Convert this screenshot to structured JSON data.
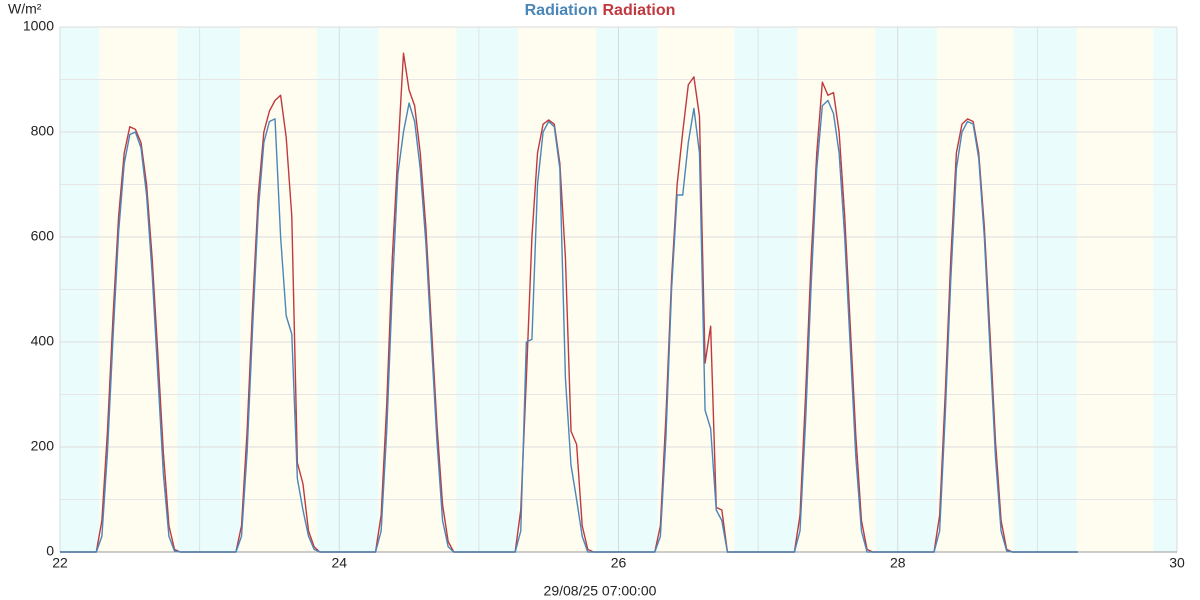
{
  "chart_data": {
    "type": "line",
    "title_parts": "series",
    "y_unit": "W/m²",
    "x_label": "29/08/25 07:00:00",
    "xlim": [
      22,
      30
    ],
    "xticks": [
      22,
      24,
      26,
      28,
      30
    ],
    "xminor": [
      23,
      25,
      27,
      29
    ],
    "ylim": [
      0,
      1000
    ],
    "yticks": [
      0,
      200,
      400,
      600,
      800,
      1000
    ],
    "yminor": [
      100,
      300,
      500,
      700,
      900
    ],
    "grid": true,
    "day_color": "#fefdf0",
    "night_color": "#ebfcfc",
    "night_spans": [
      [
        22,
        22.28
      ],
      [
        22.84,
        23.29
      ],
      [
        23.84,
        24.28
      ],
      [
        24.84,
        25.28
      ],
      [
        25.84,
        26.28
      ],
      [
        26.83,
        27.28
      ],
      [
        27.84,
        28.28
      ],
      [
        28.83,
        29.28
      ],
      [
        29.83,
        30
      ]
    ],
    "x": [
      22,
      22.26,
      22.3,
      22.34,
      22.38,
      22.42,
      22.46,
      22.5,
      22.54,
      22.58,
      22.62,
      22.66,
      22.7,
      22.74,
      22.78,
      22.82,
      22.86,
      23.26,
      23.3,
      23.34,
      23.38,
      23.42,
      23.46,
      23.5,
      23.54,
      23.58,
      23.62,
      23.66,
      23.7,
      23.74,
      23.78,
      23.82,
      23.86,
      24.26,
      24.3,
      24.34,
      24.38,
      24.42,
      24.46,
      24.5,
      24.54,
      24.58,
      24.62,
      24.66,
      24.7,
      24.74,
      24.78,
      24.82,
      24.86,
      25.26,
      25.3,
      25.34,
      25.38,
      25.42,
      25.46,
      25.5,
      25.54,
      25.58,
      25.62,
      25.66,
      25.7,
      25.74,
      25.78,
      25.82,
      25.86,
      26.26,
      26.3,
      26.34,
      26.38,
      26.42,
      26.46,
      26.5,
      26.54,
      26.58,
      26.62,
      26.66,
      26.7,
      26.74,
      26.78,
      26.82,
      26.86,
      27.26,
      27.3,
      27.34,
      27.38,
      27.42,
      27.46,
      27.5,
      27.54,
      27.58,
      27.62,
      27.66,
      27.7,
      27.74,
      27.78,
      27.82,
      27.86,
      28.26,
      28.3,
      28.34,
      28.38,
      28.42,
      28.46,
      28.5,
      28.54,
      28.58,
      28.62,
      28.66,
      28.7,
      28.74,
      28.78,
      28.82,
      28.86,
      29.29
    ],
    "series": [
      {
        "name": "Radiation",
        "color": "#4a86b8",
        "values": [
          0,
          0,
          30,
          190,
          410,
          610,
          740,
          795,
          800,
          770,
          680,
          530,
          340,
          150,
          30,
          2,
          0,
          0,
          30,
          190,
          430,
          650,
          780,
          820,
          825,
          600,
          450,
          415,
          140,
          80,
          30,
          5,
          0,
          0,
          40,
          230,
          500,
          720,
          800,
          855,
          820,
          730,
          590,
          400,
          210,
          60,
          10,
          0,
          0,
          0,
          40,
          400,
          405,
          700,
          800,
          820,
          810,
          730,
          330,
          165,
          100,
          30,
          0,
          0,
          0,
          0,
          30,
          220,
          500,
          680,
          680,
          780,
          845,
          760,
          270,
          235,
          80,
          60,
          0,
          0,
          0,
          0,
          40,
          250,
          510,
          730,
          850,
          860,
          835,
          760,
          600,
          390,
          180,
          40,
          0,
          0,
          0,
          0,
          40,
          260,
          520,
          730,
          800,
          820,
          815,
          750,
          600,
          390,
          180,
          40,
          2,
          0,
          0,
          0
        ]
      },
      {
        "name": "Radiation",
        "color": "#c0393f",
        "values": [
          0,
          0,
          60,
          230,
          450,
          640,
          760,
          810,
          805,
          780,
          700,
          560,
          380,
          190,
          50,
          5,
          0,
          0,
          50,
          230,
          470,
          680,
          800,
          840,
          860,
          870,
          790,
          640,
          170,
          130,
          40,
          10,
          0,
          0,
          70,
          280,
          560,
          760,
          950,
          880,
          850,
          760,
          620,
          430,
          240,
          90,
          20,
          0,
          0,
          0,
          80,
          330,
          600,
          760,
          815,
          823,
          815,
          740,
          560,
          230,
          205,
          50,
          5,
          0,
          0,
          0,
          50,
          260,
          520,
          700,
          800,
          890,
          905,
          830,
          360,
          430,
          85,
          80,
          0,
          0,
          0,
          0,
          70,
          300,
          560,
          760,
          895,
          870,
          875,
          800,
          640,
          430,
          220,
          60,
          5,
          0,
          0,
          0,
          70,
          300,
          560,
          760,
          815,
          825,
          820,
          760,
          620,
          420,
          210,
          60,
          5,
          0,
          0,
          0
        ]
      }
    ]
  }
}
